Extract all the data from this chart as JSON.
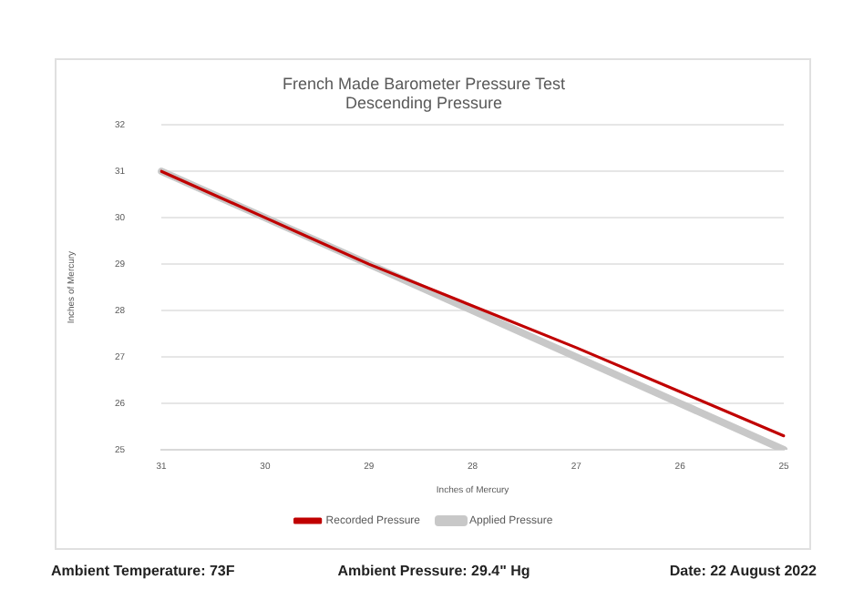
{
  "chart_data": {
    "type": "line",
    "title": "French Made Barometer Pressure Test",
    "subtitle": "Descending Pressure",
    "xlabel": "Inches of Mercury",
    "ylabel": "Inches of Mercury",
    "categories": [
      "31",
      "30",
      "29",
      "28",
      "27",
      "26",
      "25"
    ],
    "series": [
      {
        "name": "Applied Pressure",
        "color": "#c8c8c8",
        "values": [
          31,
          30,
          29,
          28,
          27,
          26,
          25
        ]
      },
      {
        "name": "Recorded Pressure",
        "color": "#c00000",
        "values": [
          31,
          30,
          29,
          28.1,
          27.2,
          26.25,
          25.3
        ]
      }
    ],
    "ylim": [
      25,
      32
    ],
    "yticks": [
      25,
      26,
      27,
      28,
      29,
      30,
      31,
      32
    ],
    "grid": "y",
    "legend": "bottom",
    "marker": "none",
    "line_style": "solid",
    "annotations": [
      "Ambient Temperature: 73F",
      "Ambient Pressure: 29.4\" Hg",
      "Date: 22 August 2022"
    ]
  }
}
